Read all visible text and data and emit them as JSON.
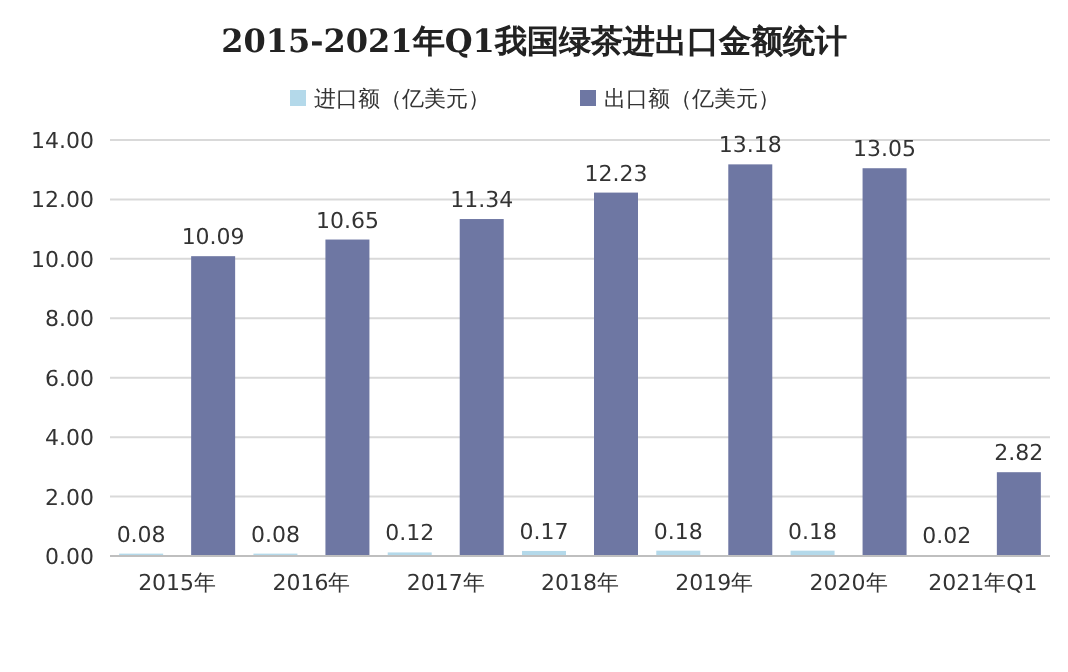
{
  "chart_data": {
    "type": "bar",
    "title": "2015-2021年Q1我国绿茶进出口金额统计",
    "categories": [
      "2015年",
      "2016年",
      "2017年",
      "2018年",
      "2019年",
      "2020年",
      "2021年Q1"
    ],
    "series": [
      {
        "name": "进口额（亿美元）",
        "color": "#b4d9ea",
        "values": [
          0.08,
          0.08,
          0.12,
          0.17,
          0.18,
          0.18,
          0.02
        ]
      },
      {
        "name": "出口额（亿美元）",
        "color": "#6e77a3",
        "values": [
          10.09,
          10.65,
          11.34,
          12.23,
          13.18,
          13.05,
          2.82
        ]
      }
    ],
    "ylim": [
      0,
      14
    ],
    "yticks": [
      {
        "value": 0,
        "label": "0.00"
      },
      {
        "value": 2,
        "label": "2.00"
      },
      {
        "value": 4,
        "label": "4.00"
      },
      {
        "value": 6,
        "label": "6.00"
      },
      {
        "value": 8,
        "label": "8.00"
      },
      {
        "value": 10,
        "label": "10.00"
      },
      {
        "value": 12,
        "label": "12.00"
      },
      {
        "value": 14,
        "label": "14.00"
      }
    ],
    "grid": "y",
    "legend": "top",
    "data_labels": true
  }
}
